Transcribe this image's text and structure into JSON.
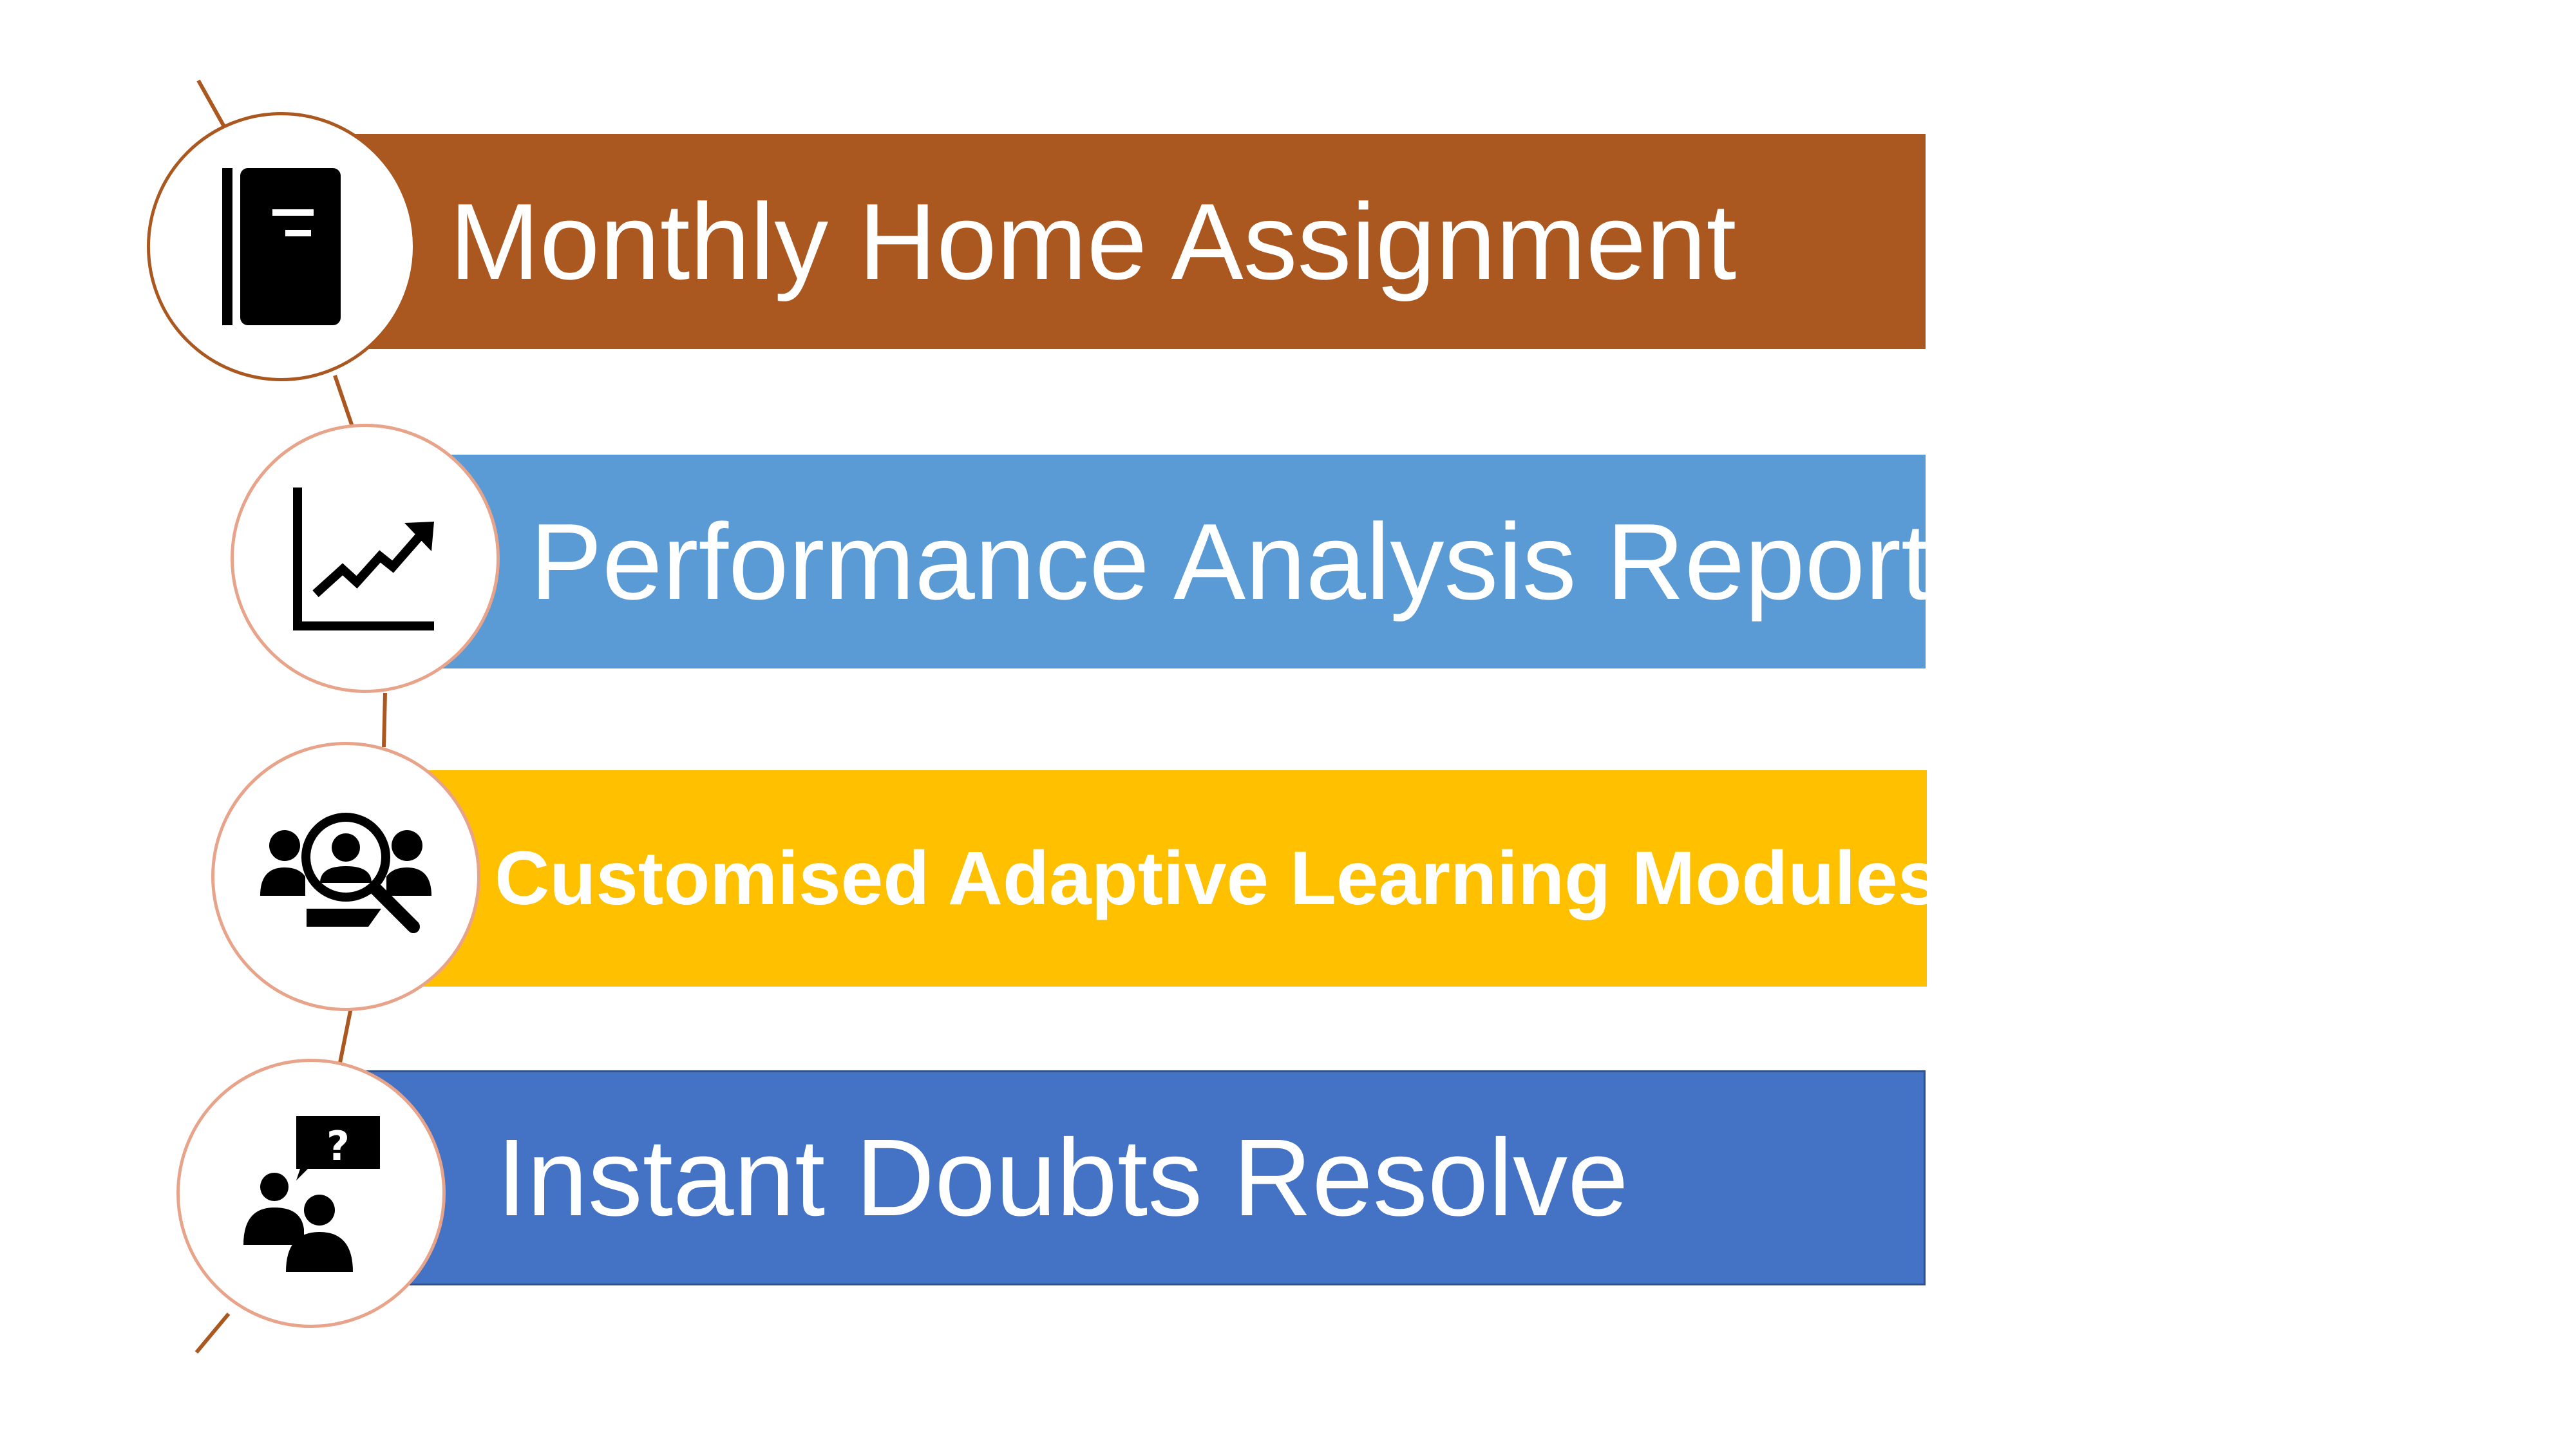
{
  "steps": [
    {
      "label": "Monthly Home Assignment",
      "icon": "book-icon",
      "color": "#AB5820"
    },
    {
      "label": "Performance Analysis Report",
      "icon": "trend-chart-icon",
      "color": "#5B9BD5"
    },
    {
      "label": "Customised Adaptive Learning Modules",
      "icon": "user-search-icon",
      "color": "#FFC000"
    },
    {
      "label": "Instant Doubts Resolve",
      "icon": "question-discussion-icon",
      "color": "#4472C4"
    }
  ],
  "connector_color": "#AB5820"
}
